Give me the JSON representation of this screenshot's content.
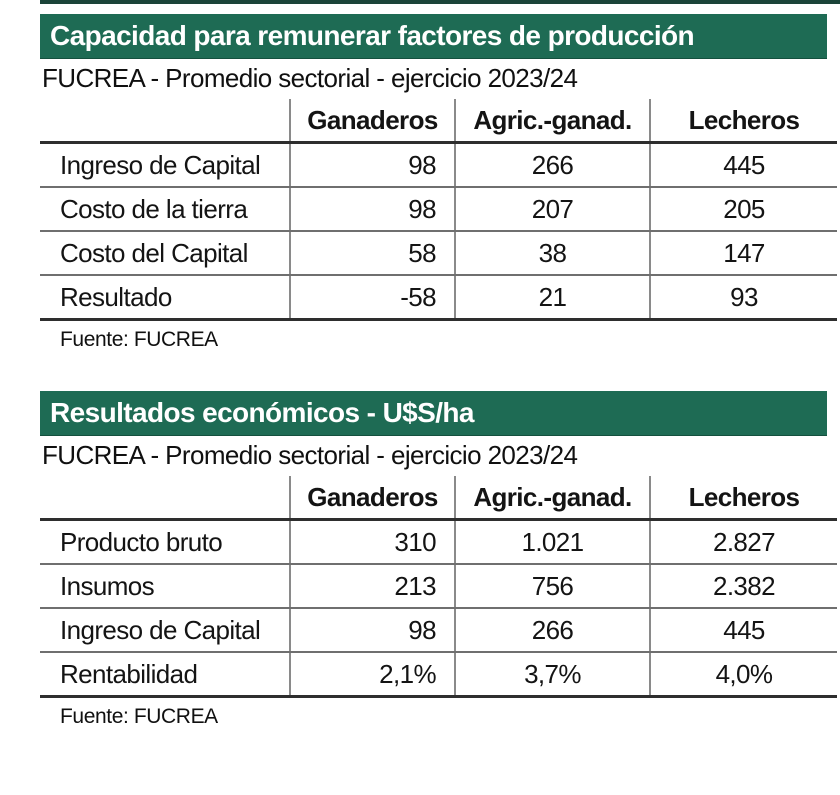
{
  "page": {
    "background": "#ffffff",
    "accent_green": "#1e6b54",
    "top_rule_color": "#1b4439",
    "text_color": "#141414",
    "title_text_color": "#ffffff"
  },
  "sections": [
    {
      "title": "Capacidad para remunerar factores de producción",
      "subtitle": "FUCREA - Promedio sectorial - ejercicio 2023/24",
      "source": "Fuente: FUCREA",
      "table": {
        "columns": [
          "Ganaderos",
          "Agric.-ganad.",
          "Lecheros"
        ],
        "rows": [
          {
            "label": "Ingreso de Capital",
            "values": [
              "98",
              "266",
              "445"
            ]
          },
          {
            "label": "Costo de la tierra",
            "values": [
              "98",
              "207",
              "205"
            ]
          },
          {
            "label": "Costo del Capital",
            "values": [
              "58",
              "38",
              "147"
            ]
          },
          {
            "label": "Resultado",
            "values": [
              "-58",
              "21",
              "93"
            ]
          }
        ]
      }
    },
    {
      "title": "Resultados económicos - U$S/ha",
      "subtitle": "FUCREA - Promedio sectorial - ejercicio 2023/24",
      "source": "Fuente: FUCREA",
      "table": {
        "columns": [
          "Ganaderos",
          "Agric.-ganad.",
          "Lecheros"
        ],
        "rows": [
          {
            "label": "Producto bruto",
            "values": [
              "310",
              "1.021",
              "2.827"
            ]
          },
          {
            "label": "Insumos",
            "values": [
              "213",
              "756",
              "2.382"
            ]
          },
          {
            "label": "Ingreso de Capital",
            "values": [
              "98",
              "266",
              "445"
            ]
          },
          {
            "label": "Rentabilidad",
            "values": [
              "2,1%",
              "3,7%",
              "4,0%"
            ]
          }
        ]
      }
    }
  ],
  "chart_data": [
    {
      "type": "table",
      "title": "Capacidad para remunerar factores de producción",
      "subtitle": "FUCREA - Promedio sectorial - ejercicio 2023/24",
      "columns": [
        "",
        "Ganaderos",
        "Agric.-ganad.",
        "Lecheros"
      ],
      "rows": [
        [
          "Ingreso de Capital",
          98,
          266,
          445
        ],
        [
          "Costo de la tierra",
          98,
          207,
          205
        ],
        [
          "Costo del Capital",
          58,
          38,
          147
        ],
        [
          "Resultado",
          -58,
          21,
          93
        ]
      ],
      "source": "Fuente: FUCREA"
    },
    {
      "type": "table",
      "title": "Resultados económicos - U$S/ha",
      "subtitle": "FUCREA - Promedio sectorial - ejercicio 2023/24",
      "columns": [
        "",
        "Ganaderos",
        "Agric.-ganad.",
        "Lecheros"
      ],
      "units": "U$S/ha",
      "rows": [
        [
          "Producto bruto",
          310,
          1021,
          2827
        ],
        [
          "Insumos",
          213,
          756,
          2382
        ],
        [
          "Ingreso de Capital",
          98,
          266,
          445
        ],
        [
          "Rentabilidad",
          "2,1%",
          "3,7%",
          "4,0%"
        ]
      ],
      "source": "Fuente: FUCREA"
    }
  ]
}
